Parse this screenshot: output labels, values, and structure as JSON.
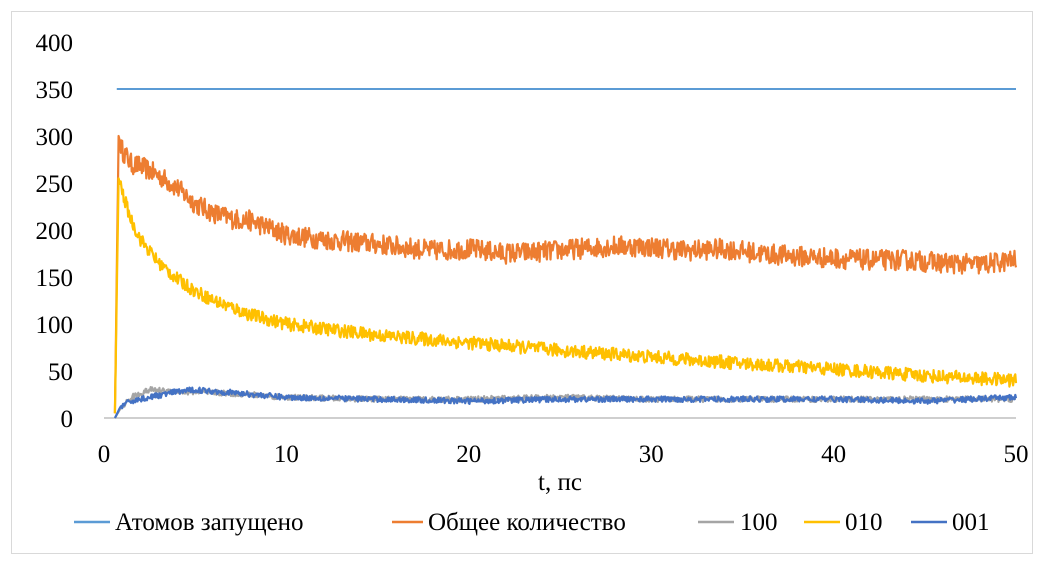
{
  "chart_data": {
    "type": "line",
    "title": "",
    "xlabel": "t, пс",
    "ylabel": "",
    "xlim": [
      0,
      50
    ],
    "ylim": [
      0,
      400
    ],
    "x_ticks": [
      0,
      10,
      20,
      30,
      40,
      50
    ],
    "y_ticks": [
      0,
      50,
      100,
      150,
      200,
      250,
      300,
      350,
      400
    ],
    "grid": false,
    "legend_position": "bottom",
    "series": [
      {
        "name": "Атомов запущено",
        "color": "#5b9bd5",
        "noise": 0,
        "x": [
          0.7,
          50
        ],
        "y": [
          350,
          350
        ]
      },
      {
        "name": "Общее количество",
        "color": "#ed7d31",
        "noise": 11,
        "x": [
          0.6,
          0.8,
          1.0,
          1.5,
          2,
          3,
          4,
          5,
          6,
          7,
          8,
          10,
          12,
          15,
          18,
          20,
          22,
          24,
          26,
          28,
          30,
          32,
          34,
          36,
          38,
          40,
          42,
          44,
          46,
          48,
          50
        ],
        "y": [
          5,
          300,
          285,
          270,
          268,
          258,
          245,
          228,
          218,
          212,
          210,
          195,
          190,
          185,
          178,
          180,
          175,
          177,
          180,
          183,
          182,
          178,
          180,
          175,
          172,
          170,
          168,
          168,
          165,
          163,
          168
        ]
      },
      {
        "name": "100",
        "color": "#a5a5a5",
        "noise": 3,
        "x": [
          0.6,
          0.9,
          1.5,
          2.5,
          4,
          6,
          8,
          10,
          15,
          20,
          25,
          30,
          35,
          40,
          45,
          50
        ],
        "y": [
          0,
          10,
          22,
          30,
          28,
          27,
          25,
          22,
          20,
          20,
          22,
          20,
          20,
          20,
          20,
          20
        ]
      },
      {
        "name": "010",
        "color": "#ffc000",
        "noise": 7,
        "x": [
          0.6,
          0.8,
          1.0,
          1.5,
          2,
          3,
          4,
          5,
          6,
          8,
          10,
          12,
          15,
          20,
          25,
          30,
          35,
          40,
          45,
          50
        ],
        "y": [
          5,
          255,
          240,
          210,
          190,
          165,
          148,
          135,
          125,
          110,
          100,
          95,
          88,
          80,
          72,
          65,
          58,
          52,
          45,
          40
        ]
      },
      {
        "name": "001",
        "color": "#4472c4",
        "noise": 3,
        "x": [
          0.6,
          0.9,
          1.5,
          2.5,
          4,
          5,
          7,
          10,
          15,
          20,
          25,
          30,
          35,
          40,
          45,
          50
        ],
        "y": [
          0,
          12,
          18,
          22,
          28,
          30,
          27,
          22,
          20,
          18,
          20,
          20,
          20,
          20,
          18,
          22
        ]
      }
    ]
  }
}
